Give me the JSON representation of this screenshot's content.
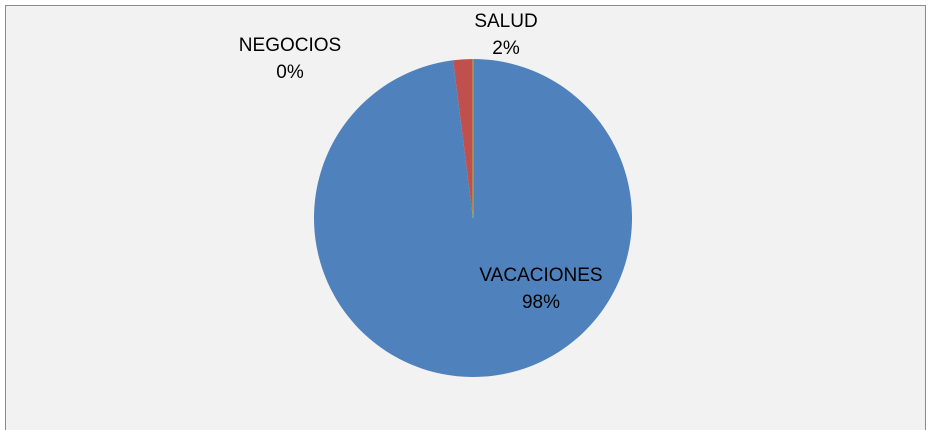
{
  "chart_data": {
    "type": "pie",
    "categories": [
      "VACACIONES",
      "SALUD",
      "NEGOCIOS"
    ],
    "values": [
      98,
      2,
      0
    ],
    "value_labels": [
      "98%",
      "2%",
      "0%"
    ],
    "colors": [
      "#4f81bd",
      "#c0504d",
      "#9bbb59"
    ]
  }
}
